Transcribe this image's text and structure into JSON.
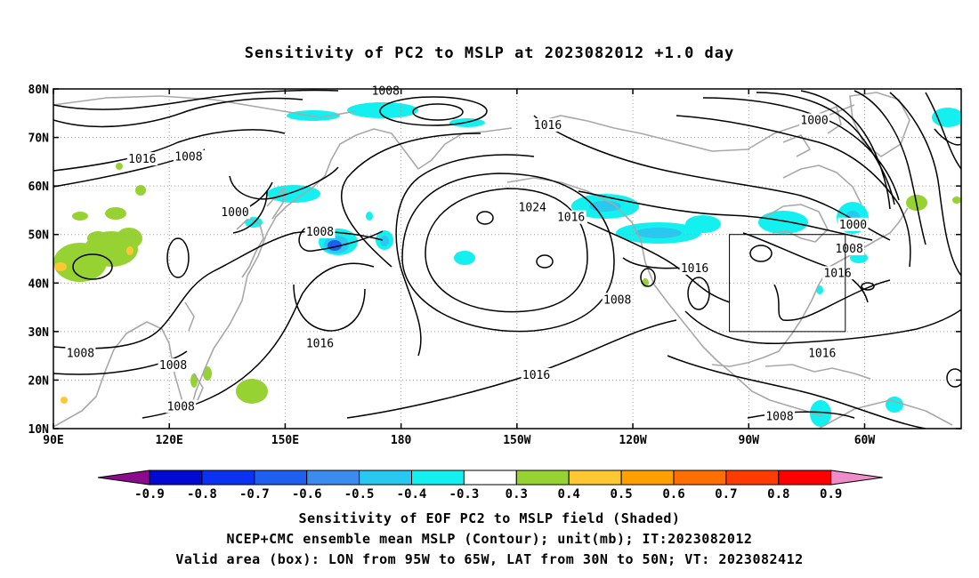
{
  "title": "Sensitivity of PC2 to MSLP at 2023082012 +1.0 day",
  "lat_labels": [
    "80N",
    "70N",
    "60N",
    "50N",
    "40N",
    "30N",
    "20N",
    "10N"
  ],
  "lon_labels": [
    "90E",
    "120E",
    "150E",
    "180",
    "150W",
    "120W",
    "90W",
    "60W"
  ],
  "contour_labels": [
    {
      "text": "1008",
      "lon": 97,
      "lat": 25.5
    },
    {
      "text": "1008",
      "lon": 121,
      "lat": 23
    },
    {
      "text": "1008",
      "lon": 123,
      "lat": 14.5
    },
    {
      "text": "1016",
      "lon": 113,
      "lat": 65.5
    },
    {
      "text": "1008",
      "lon": 125,
      "lat": 66
    },
    {
      "text": "1000",
      "lon": 137,
      "lat": 54.5
    },
    {
      "text": "1008",
      "lon": 159,
      "lat": 50.5
    },
    {
      "text": "1008",
      "lon": 176,
      "lat": 79.5
    },
    {
      "text": "1016",
      "lon": 159,
      "lat": 27.5
    },
    {
      "text": "1016",
      "lon": 218,
      "lat": 72.5
    },
    {
      "text": "1024",
      "lon": 214,
      "lat": 55.5
    },
    {
      "text": "1016",
      "lon": 224,
      "lat": 53.5
    },
    {
      "text": "1016",
      "lon": 215,
      "lat": 21
    },
    {
      "text": "1008",
      "lon": 236,
      "lat": 36.5
    },
    {
      "text": "1016",
      "lon": 256,
      "lat": 43
    },
    {
      "text": "1000",
      "lon": 287,
      "lat": 73.5
    },
    {
      "text": "1000",
      "lon": 297,
      "lat": 52
    },
    {
      "text": "1008",
      "lon": 296,
      "lat": 47
    },
    {
      "text": "1016",
      "lon": 293,
      "lat": 42
    },
    {
      "text": "1016",
      "lon": 289,
      "lat": 25.5
    },
    {
      "text": "1008",
      "lon": 278,
      "lat": 12.5
    }
  ],
  "valid_box": {
    "lon_min": 265,
    "lon_max": 295,
    "lat_min": 30,
    "lat_max": 50
  },
  "colorbar": {
    "colors": [
      "#8c0a8c",
      "#000ad2",
      "#0a32f0",
      "#1e5ff0",
      "#3c8cf0",
      "#28c8f0",
      "#14f0f0",
      "#ffffff",
      "#96d232",
      "#ffc832",
      "#ffa000",
      "#ff6e00",
      "#ff3c00",
      "#ff0000",
      "#f08cc8"
    ],
    "labels": [
      "-0.9",
      "-0.8",
      "-0.7",
      "-0.6",
      "-0.5",
      "-0.4",
      "-0.3",
      "0.3",
      "0.4",
      "0.5",
      "0.6",
      "0.7",
      "0.8",
      "0.9"
    ]
  },
  "caption": [
    "Sensitivity of EOF PC2 to MSLP field (Shaded)",
    "NCEP+CMC ensemble mean MSLP (Contour); unit(mb); IT:2023082012",
    "Valid area (box): LON from 95W to 65W, LAT from 30N to 50N; VT: 2023082412"
  ]
}
